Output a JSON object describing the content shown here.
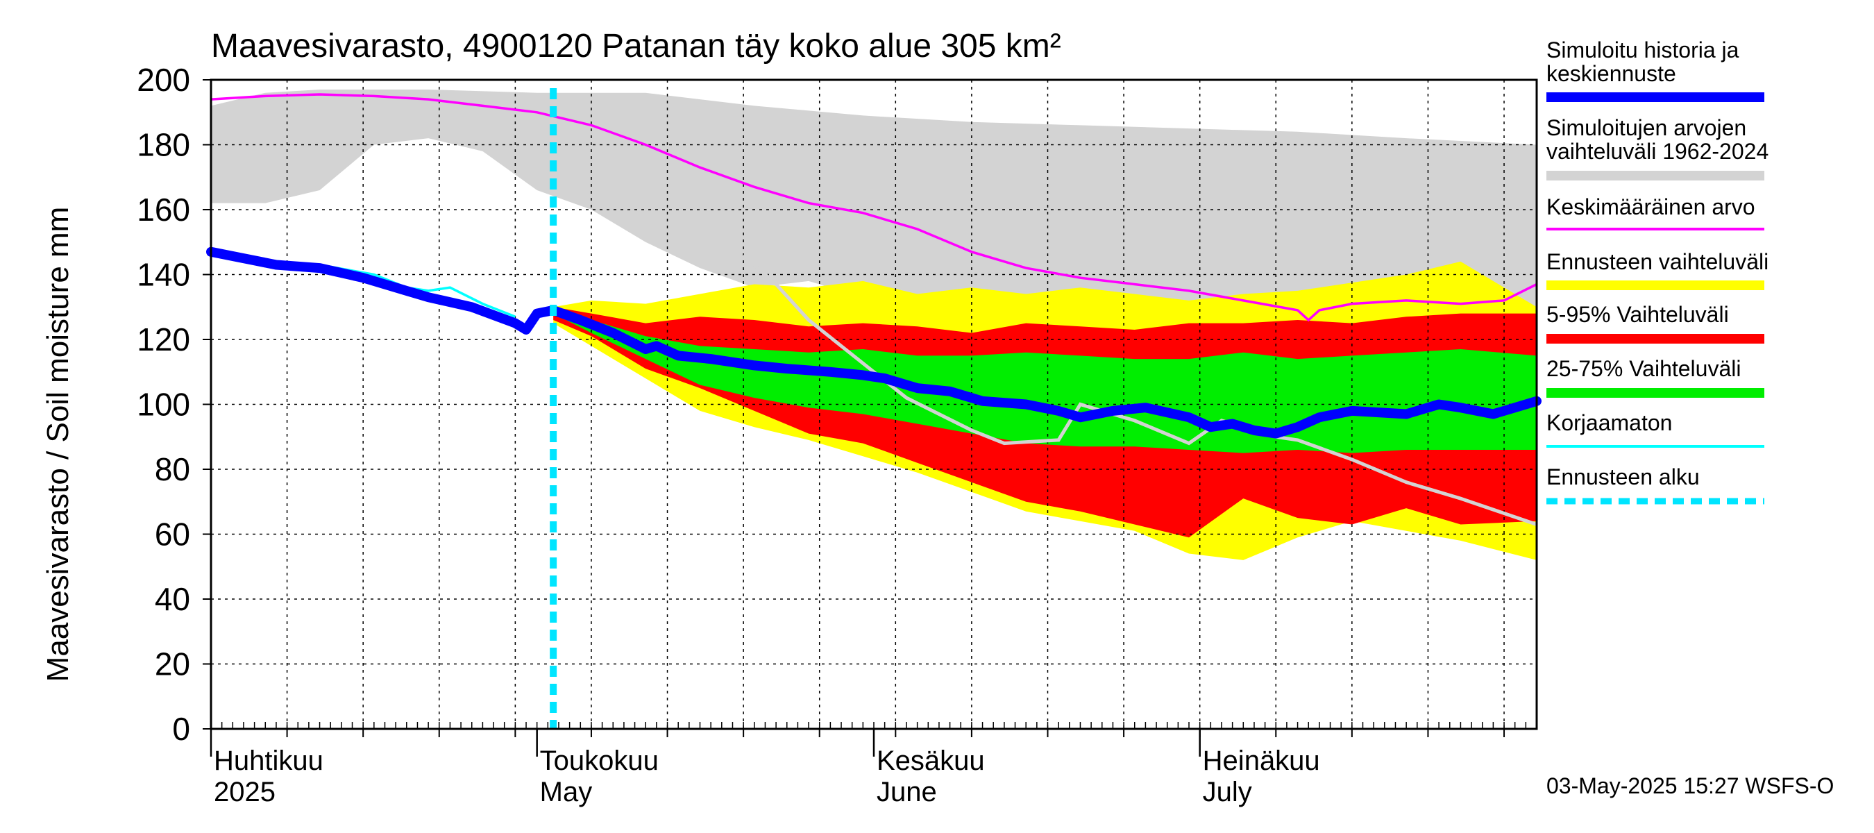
{
  "chart_data": {
    "type": "area",
    "title": "Maavesivarasto, 4900120 Patanan täy koko alue 305 km²",
    "ylabel": "Maavesivarasto / Soil moisture   mm",
    "ylim": [
      0,
      200
    ],
    "yticks": [
      0,
      20,
      40,
      60,
      80,
      100,
      120,
      140,
      160,
      180,
      200
    ],
    "x_unit": "days since 2025-04-01",
    "xlim": [
      0,
      122
    ],
    "forecast_start_day": 31.5,
    "month_labels": [
      {
        "day": 0,
        "fi": "Huhtikuu",
        "en": "2025"
      },
      {
        "day": 30,
        "fi": "Toukokuu",
        "en": "May"
      },
      {
        "day": 61,
        "fi": "Kesäkuu",
        "en": "June"
      },
      {
        "day": 91,
        "fi": "Heinäkuu",
        "en": "July"
      }
    ],
    "footer": "03-May-2025 15:27 WSFS-O",
    "legend": {
      "history": [
        "Simuloitu historia ja",
        "keskiennuste"
      ],
      "range_all": [
        "Simuloitujen arvojen",
        "vaihteluväli 1962-2024"
      ],
      "mean": "Keskimääräinen arvo",
      "forecast_range": "Ennusteen vaihteluväli",
      "p5_95": "5-95% Vaihteluväli",
      "p25_75": "25-75% Vaihteluväli",
      "uncorrected": "Korjaamaton",
      "forecast_start": "Ennusteen alku"
    },
    "colors": {
      "range_all": "#d3d3d3",
      "mean": "#ff00ff",
      "forecast_range": "#ffff00",
      "p5_95": "#ff0000",
      "p25_75": "#00ee00",
      "history": "#0000ff",
      "uncorrected": "#00ffff",
      "forecast_start": "#00e5ff",
      "median_gray": "#d3d3d3"
    },
    "series": {
      "range_all_upper": [
        [
          0,
          192
        ],
        [
          5,
          196
        ],
        [
          10,
          197
        ],
        [
          20,
          197
        ],
        [
          30,
          196
        ],
        [
          40,
          196
        ],
        [
          50,
          192
        ],
        [
          60,
          189
        ],
        [
          70,
          187
        ],
        [
          80,
          186
        ],
        [
          90,
          185
        ],
        [
          100,
          184
        ],
        [
          110,
          182
        ],
        [
          122,
          180
        ]
      ],
      "range_all_lower": [
        [
          0,
          162
        ],
        [
          5,
          162
        ],
        [
          10,
          166
        ],
        [
          15,
          180
        ],
        [
          20,
          182
        ],
        [
          25,
          178
        ],
        [
          30,
          166
        ],
        [
          35,
          160
        ],
        [
          40,
          150
        ],
        [
          45,
          142
        ],
        [
          50,
          136
        ],
        [
          55,
          138
        ],
        [
          60,
          133
        ],
        [
          65,
          122
        ],
        [
          70,
          111
        ],
        [
          75,
          103
        ],
        [
          80,
          97
        ],
        [
          85,
          95
        ],
        [
          90,
          93
        ],
        [
          95,
          92
        ],
        [
          100,
          91
        ],
        [
          105,
          88
        ],
        [
          110,
          89
        ],
        [
          115,
          93
        ],
        [
          122,
          92
        ]
      ],
      "mean": [
        [
          0,
          194
        ],
        [
          5,
          195
        ],
        [
          10,
          195.5
        ],
        [
          15,
          195
        ],
        [
          20,
          194
        ],
        [
          25,
          192
        ],
        [
          30,
          190
        ],
        [
          35,
          186
        ],
        [
          40,
          180
        ],
        [
          45,
          173
        ],
        [
          50,
          167
        ],
        [
          55,
          162
        ],
        [
          60,
          159
        ],
        [
          65,
          154
        ],
        [
          70,
          147
        ],
        [
          75,
          142
        ],
        [
          80,
          139
        ],
        [
          85,
          137
        ],
        [
          90,
          135
        ],
        [
          95,
          132
        ],
        [
          100,
          129
        ],
        [
          101,
          126
        ],
        [
          102,
          129
        ],
        [
          105,
          131
        ],
        [
          110,
          132
        ],
        [
          115,
          131
        ],
        [
          119,
          132
        ],
        [
          122,
          137
        ]
      ],
      "forecast_range_upper": [
        [
          31.5,
          130
        ],
        [
          35,
          132
        ],
        [
          40,
          131
        ],
        [
          45,
          134
        ],
        [
          50,
          137
        ],
        [
          55,
          136
        ],
        [
          60,
          138
        ],
        [
          65,
          134
        ],
        [
          70,
          136
        ],
        [
          75,
          134
        ],
        [
          80,
          136
        ],
        [
          85,
          134
        ],
        [
          90,
          132
        ],
        [
          95,
          134
        ],
        [
          100,
          135
        ],
        [
          110,
          140
        ],
        [
          115,
          144
        ],
        [
          122,
          130
        ]
      ],
      "forecast_range_lower": [
        [
          31.5,
          125
        ],
        [
          35,
          118
        ],
        [
          40,
          108
        ],
        [
          45,
          98
        ],
        [
          50,
          93
        ],
        [
          55,
          89
        ],
        [
          60,
          84
        ],
        [
          65,
          79
        ],
        [
          70,
          73
        ],
        [
          75,
          67
        ],
        [
          80,
          64
        ],
        [
          85,
          61
        ],
        [
          90,
          54
        ],
        [
          95,
          52
        ],
        [
          100,
          59
        ],
        [
          105,
          64
        ],
        [
          110,
          61
        ],
        [
          115,
          58
        ],
        [
          122,
          52
        ]
      ],
      "p5_95_upper": [
        [
          31.5,
          130
        ],
        [
          35,
          128
        ],
        [
          40,
          125
        ],
        [
          45,
          127
        ],
        [
          50,
          126
        ],
        [
          55,
          124
        ],
        [
          60,
          125
        ],
        [
          65,
          124
        ],
        [
          70,
          122
        ],
        [
          75,
          125
        ],
        [
          80,
          124
        ],
        [
          85,
          123
        ],
        [
          90,
          125
        ],
        [
          95,
          125
        ],
        [
          100,
          126
        ],
        [
          105,
          125
        ],
        [
          110,
          127
        ],
        [
          115,
          128
        ],
        [
          122,
          128
        ]
      ],
      "p5_95_lower": [
        [
          31.5,
          126
        ],
        [
          35,
          121
        ],
        [
          40,
          111
        ],
        [
          45,
          105
        ],
        [
          50,
          98
        ],
        [
          55,
          91
        ],
        [
          60,
          88
        ],
        [
          65,
          82
        ],
        [
          70,
          76
        ],
        [
          75,
          70
        ],
        [
          80,
          67
        ],
        [
          85,
          63
        ],
        [
          90,
          59
        ],
        [
          95,
          71
        ],
        [
          100,
          65
        ],
        [
          105,
          63
        ],
        [
          110,
          68
        ],
        [
          115,
          63
        ],
        [
          122,
          64
        ]
      ],
      "p25_75_upper": [
        [
          31.5,
          129
        ],
        [
          35,
          126
        ],
        [
          40,
          121
        ],
        [
          45,
          118
        ],
        [
          50,
          117
        ],
        [
          55,
          116
        ],
        [
          60,
          117
        ],
        [
          65,
          115
        ],
        [
          70,
          115
        ],
        [
          75,
          116
        ],
        [
          80,
          115
        ],
        [
          85,
          114
        ],
        [
          90,
          114
        ],
        [
          95,
          116
        ],
        [
          100,
          114
        ],
        [
          105,
          115
        ],
        [
          110,
          116
        ],
        [
          115,
          117
        ],
        [
          122,
          115
        ]
      ],
      "p25_75_lower": [
        [
          31.5,
          128
        ],
        [
          35,
          122
        ],
        [
          40,
          114
        ],
        [
          45,
          106
        ],
        [
          50,
          102
        ],
        [
          55,
          99
        ],
        [
          60,
          97
        ],
        [
          65,
          94
        ],
        [
          70,
          91
        ],
        [
          75,
          88
        ],
        [
          80,
          87
        ],
        [
          85,
          87
        ],
        [
          90,
          86
        ],
        [
          95,
          85
        ],
        [
          100,
          86
        ],
        [
          105,
          85
        ],
        [
          110,
          86
        ],
        [
          115,
          86
        ],
        [
          122,
          86
        ]
      ],
      "median_gray": [
        [
          49,
          146
        ],
        [
          52,
          137
        ],
        [
          55,
          126
        ],
        [
          58,
          118
        ],
        [
          61,
          110
        ],
        [
          64,
          102
        ],
        [
          67,
          97
        ],
        [
          70,
          92
        ],
        [
          73,
          88
        ],
        [
          78,
          89
        ],
        [
          80,
          100
        ],
        [
          82,
          98
        ],
        [
          85,
          95
        ],
        [
          90,
          88
        ],
        [
          93,
          95
        ],
        [
          95,
          93
        ],
        [
          98,
          90
        ],
        [
          100,
          89
        ],
        [
          105,
          83
        ],
        [
          110,
          76
        ],
        [
          115,
          71
        ],
        [
          122,
          63
        ]
      ],
      "uncorrected": [
        [
          0,
          146
        ],
        [
          5,
          144
        ],
        [
          10,
          143
        ],
        [
          15,
          140
        ],
        [
          18,
          136
        ],
        [
          20,
          135
        ],
        [
          22,
          136
        ],
        [
          25,
          131
        ],
        [
          28,
          127
        ]
      ],
      "history": [
        [
          0,
          147
        ],
        [
          3,
          145
        ],
        [
          6,
          143
        ],
        [
          10,
          142
        ],
        [
          14,
          139
        ],
        [
          18,
          135
        ],
        [
          20,
          133
        ],
        [
          24,
          130
        ],
        [
          28,
          125
        ],
        [
          29,
          123
        ],
        [
          30,
          128
        ],
        [
          31.5,
          129
        ],
        [
          34,
          126
        ],
        [
          37,
          122
        ],
        [
          40,
          117
        ],
        [
          41,
          118
        ],
        [
          43,
          115
        ],
        [
          46,
          114
        ],
        [
          50,
          112
        ],
        [
          53,
          111
        ],
        [
          57,
          110
        ],
        [
          60,
          109
        ],
        [
          62,
          108
        ],
        [
          65,
          105
        ],
        [
          68,
          104
        ],
        [
          71,
          101
        ],
        [
          75,
          100
        ],
        [
          78,
          98
        ],
        [
          80,
          96
        ],
        [
          83,
          98
        ],
        [
          86,
          99
        ],
        [
          90,
          96
        ],
        [
          92,
          93
        ],
        [
          94,
          94
        ],
        [
          96,
          92
        ],
        [
          98,
          91
        ],
        [
          100,
          93
        ],
        [
          102,
          96
        ],
        [
          105,
          98
        ],
        [
          110,
          97
        ],
        [
          113,
          100
        ],
        [
          115,
          99
        ],
        [
          118,
          97
        ],
        [
          120,
          99
        ],
        [
          122,
          101
        ]
      ]
    }
  }
}
